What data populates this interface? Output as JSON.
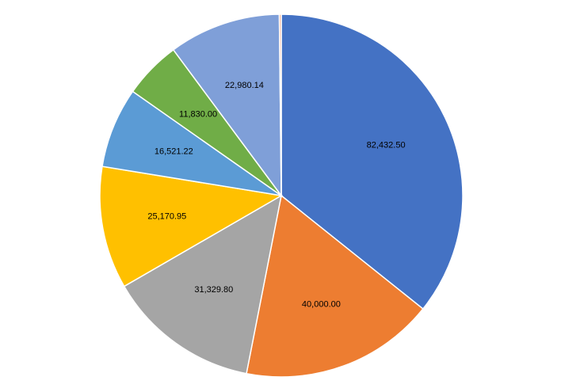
{
  "chart_data": {
    "type": "pie",
    "title": "",
    "legend": "none",
    "start_angle_deg": 0,
    "direction": "clockwise",
    "slices": [
      {
        "value": 82432.5,
        "label": "82,432.50",
        "color": "#4472C4"
      },
      {
        "value": 40000.0,
        "label": "40,000.00",
        "color": "#ED7D31"
      },
      {
        "value": 31329.8,
        "label": "31,329.80",
        "color": "#A5A5A5"
      },
      {
        "value": 25170.95,
        "label": "25,170.95",
        "color": "#FFC000"
      },
      {
        "value": 16521.22,
        "label": "16,521.22",
        "color": "#5B9BD5"
      },
      {
        "value": 11830.0,
        "label": "11,830.00",
        "color": "#70AD47"
      },
      {
        "value": 22980.14,
        "label": "22,980.14",
        "color": "#7F9FD8"
      },
      {
        "value": 400.0,
        "label": "",
        "color": "#F4A582"
      }
    ]
  }
}
